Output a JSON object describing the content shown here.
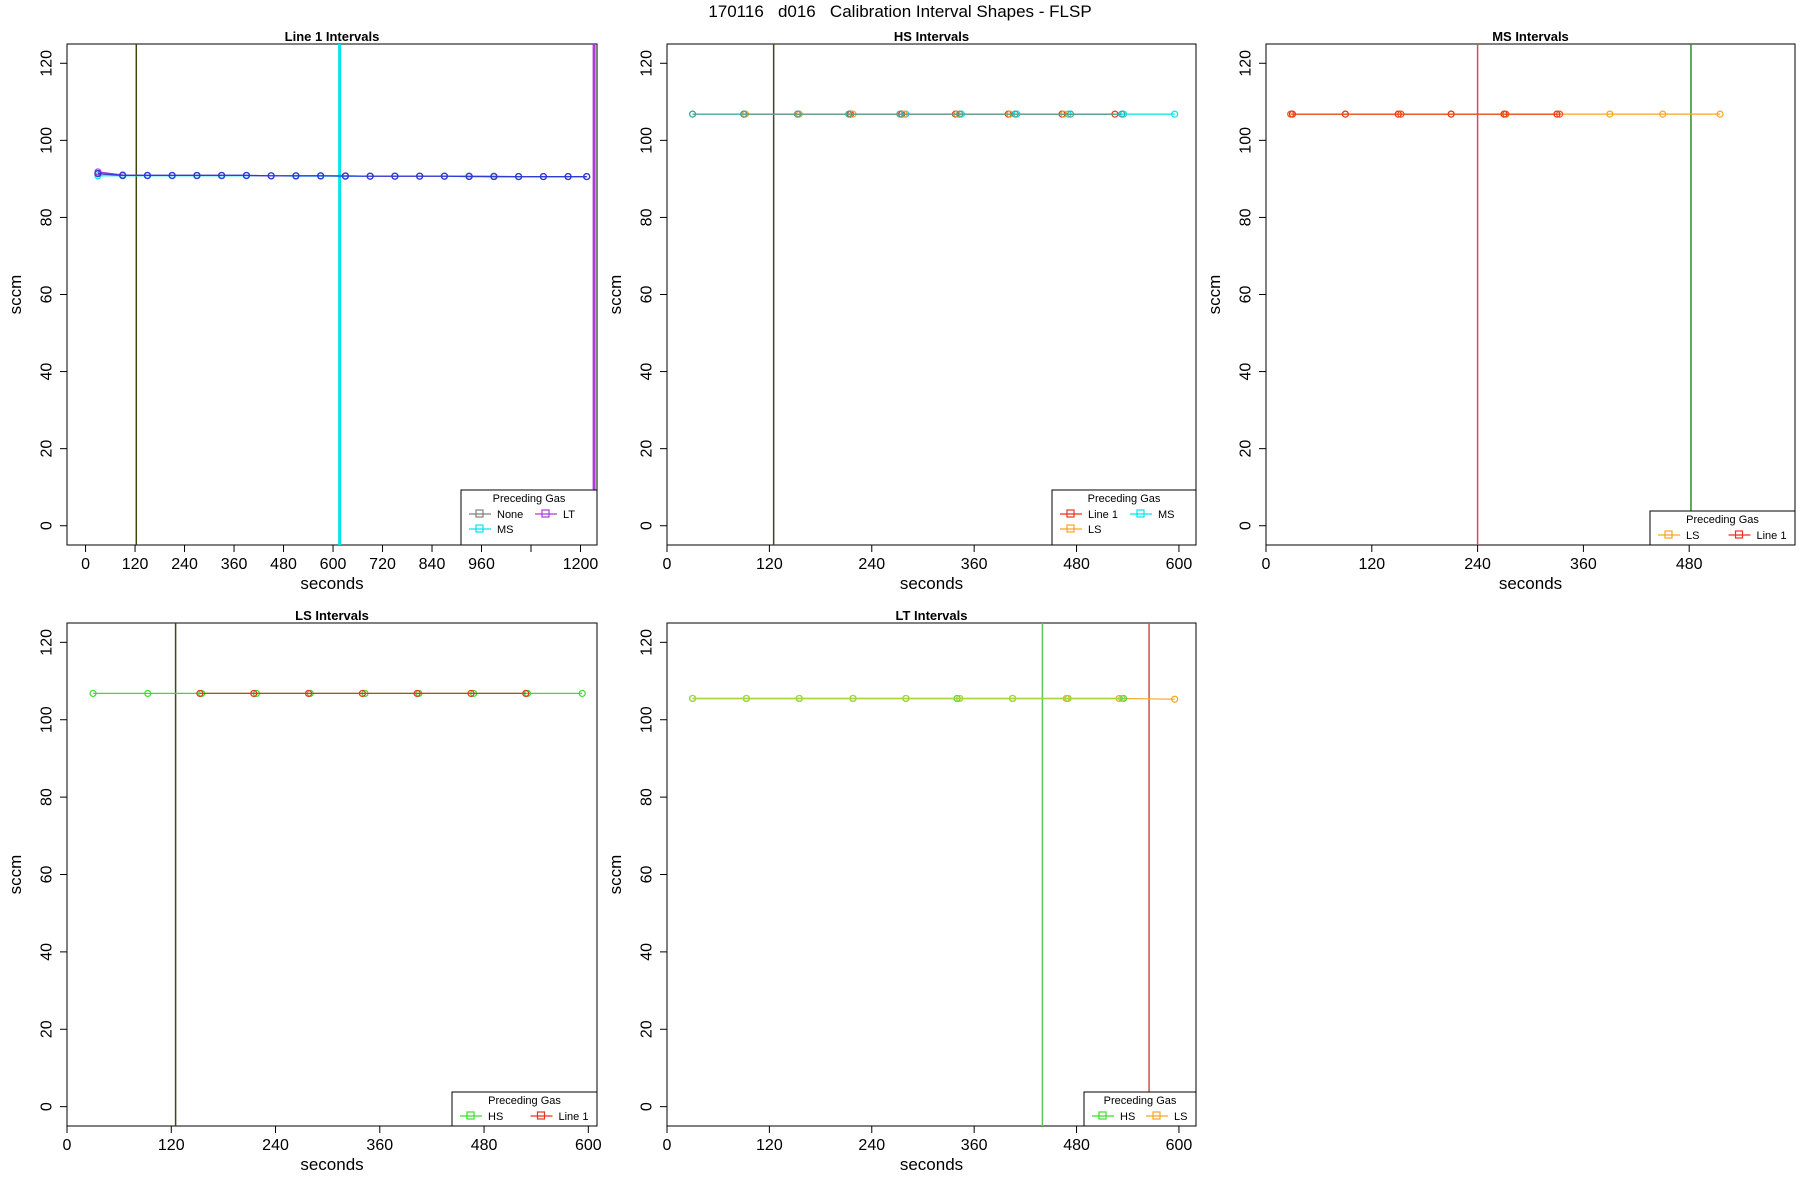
{
  "page_title": "170116   d016   Calibration Interval Shapes - FLSP",
  "colors": {
    "None": "#808080",
    "MS": "#00e5ee",
    "LT": "#b03ad8",
    "Line 1": "#e8331f",
    "LS": "#f5a623",
    "HS": "#3adf2a",
    "dark_olive": "#3d4a0f",
    "forest_green": "#2e8b2e",
    "light_green": "#5fc35f",
    "brick_red": "#c8544a",
    "blue_line": "#2b3cd8",
    "teal_line": "#4aa39a",
    "orange_red_line": "#e8521a",
    "yellow_green_line": "#a6d83a"
  },
  "chart_data": [
    {
      "type": "line",
      "title": "Line 1 Intervals",
      "xlabel": "seconds",
      "ylabel": "sccm",
      "xlim": [
        -45,
        1240
      ],
      "ylim": [
        -5,
        125
      ],
      "xticks": [
        0,
        120,
        240,
        360,
        480,
        600,
        720,
        840,
        960,
        1080,
        1200
      ],
      "xticklabels": [
        "0",
        "120",
        "240",
        "360",
        "480",
        "600",
        "720",
        "840",
        "960",
        "",
        "1200"
      ],
      "yticks": [
        0,
        20,
        40,
        60,
        80,
        100,
        120
      ],
      "legend": {
        "title": "Preceding Gas",
        "position": "bottom-right",
        "entries": [
          "None",
          "LT",
          "MS"
        ]
      },
      "vlines": [
        {
          "x": 123,
          "color": "#3d4a0f",
          "width": 1.5
        },
        {
          "x": 616,
          "color": "#00e5ee",
          "width": 3
        },
        {
          "x": 1233,
          "color": "#b03ad8",
          "width": 3
        }
      ],
      "series": [
        {
          "name": "MS",
          "color": "#00e5ee",
          "x": [
            30,
            90,
            150,
            210,
            270,
            330,
            390,
            450,
            510,
            570,
            630,
            690,
            750,
            810,
            870,
            930,
            990,
            1050,
            1110,
            1170,
            1215
          ],
          "y": [
            90.8,
            90.8,
            90.8,
            90.8,
            90.8,
            90.8,
            90.8,
            90.8,
            90.7,
            90.7,
            90.7,
            90.7,
            90.7,
            90.7,
            90.7,
            90.7,
            90.6,
            90.6,
            90.6,
            90.6,
            90.6
          ]
        },
        {
          "name": "None",
          "color": "#808080",
          "x": [
            30,
            90,
            150,
            210,
            270,
            330,
            390,
            450,
            510,
            570,
            630,
            690,
            750,
            810,
            870,
            930,
            990,
            1050,
            1110,
            1170,
            1215
          ],
          "y": [
            91.3,
            90.9,
            90.9,
            90.9,
            90.9,
            90.9,
            90.9,
            90.8,
            90.8,
            90.8,
            90.8,
            90.7,
            90.7,
            90.7,
            90.7,
            90.7,
            90.7,
            90.6,
            90.6,
            90.6,
            90.6
          ]
        },
        {
          "name": "LT",
          "color": "#b03ad8",
          "x": [
            30,
            90,
            150,
            210,
            270,
            330,
            390,
            450,
            510,
            570,
            630,
            690,
            750,
            810,
            870,
            930,
            990,
            1050,
            1110,
            1170,
            1215
          ],
          "y": [
            91.8,
            91.0,
            90.9,
            90.9,
            90.9,
            90.9,
            90.9,
            90.8,
            90.8,
            90.8,
            90.8,
            90.7,
            90.7,
            90.7,
            90.7,
            90.7,
            90.6,
            90.6,
            90.6,
            90.6,
            90.6
          ]
        },
        {
          "name": "",
          "color": "#2b3cd8",
          "x": [
            30,
            90,
            150,
            210,
            270,
            330,
            390,
            450,
            510,
            570,
            630,
            690,
            750,
            810,
            870,
            930,
            990,
            1050,
            1110,
            1170,
            1215
          ],
          "y": [
            91.4,
            90.9,
            90.9,
            90.9,
            90.9,
            90.9,
            90.9,
            90.8,
            90.8,
            90.8,
            90.7,
            90.7,
            90.7,
            90.7,
            90.7,
            90.6,
            90.6,
            90.6,
            90.6,
            90.6,
            90.6
          ]
        }
      ]
    },
    {
      "type": "line",
      "title": "HS Intervals",
      "xlabel": "seconds",
      "ylabel": "sccm",
      "xlim": [
        0,
        620
      ],
      "ylim": [
        -5,
        125
      ],
      "xticks": [
        0,
        120,
        240,
        360,
        480,
        600
      ],
      "xticklabels": [
        "0",
        "120",
        "240",
        "360",
        "480",
        "600"
      ],
      "yticks": [
        0,
        20,
        40,
        60,
        80,
        100,
        120
      ],
      "legend": {
        "title": "Preceding Gas",
        "position": "bottom-right",
        "entries": [
          "Line 1",
          "MS",
          "LS"
        ]
      },
      "vlines": [
        {
          "x": 125,
          "color": "#3d4a0f",
          "width": 1.5
        }
      ],
      "series": [
        {
          "name": "MS",
          "color": "#00e5ee",
          "x": [
            30,
            90,
            155,
            215,
            280,
            345,
            410,
            470,
            535,
            595
          ],
          "y": [
            106.8,
            106.8,
            106.8,
            106.8,
            106.8,
            106.8,
            106.8,
            106.8,
            106.8,
            106.8
          ]
        },
        {
          "name": "Line 1",
          "color": "#e8331f",
          "x": [
            90,
            153,
            215,
            275,
            338,
            400,
            463,
            525
          ],
          "y": [
            106.8,
            106.8,
            106.8,
            106.8,
            106.8,
            106.8,
            106.8,
            106.8
          ]
        },
        {
          "name": "LS",
          "color": "#f5a623",
          "x": [
            92,
            155,
            218,
            278,
            340,
            402,
            465
          ],
          "y": [
            106.8,
            106.8,
            106.8,
            106.8,
            106.8,
            106.8,
            106.8
          ]
        },
        {
          "name": "",
          "color": "#4aa39a",
          "x": [
            30,
            90,
            153,
            213,
            273,
            343,
            408,
            473,
            533
          ],
          "y": [
            106.8,
            106.8,
            106.8,
            106.8,
            106.8,
            106.8,
            106.8,
            106.8,
            106.8
          ]
        }
      ]
    },
    {
      "type": "line",
      "title": "MS Intervals",
      "xlabel": "seconds",
      "ylabel": "sccm",
      "xlim": [
        0,
        600
      ],
      "ylim": [
        -5,
        125
      ],
      "xticks": [
        0,
        120,
        240,
        360,
        480
      ],
      "xticklabels": [
        "0",
        "120",
        "240",
        "360",
        "480"
      ],
      "yticks": [
        0,
        20,
        40,
        60,
        80,
        100,
        120
      ],
      "legend": {
        "title": "Preceding Gas",
        "position": "bottom-right",
        "entries": [
          "LS",
          "Line 1"
        ]
      },
      "vlines": [
        {
          "x": 240,
          "color": "#c8544a",
          "width": 1.5
        },
        {
          "x": 482,
          "color": "#2e8b2e",
          "width": 1.5
        }
      ],
      "series": [
        {
          "name": "LS",
          "color": "#f5a623",
          "x": [
            30,
            90,
            150,
            210,
            270,
            330,
            390,
            450,
            515
          ],
          "y": [
            106.8,
            106.8,
            106.8,
            106.8,
            106.8,
            106.8,
            106.8,
            106.8,
            106.8
          ]
        },
        {
          "name": "Line 1",
          "color": "#e8331f",
          "x": [
            30,
            90,
            150,
            210,
            270,
            330
          ],
          "y": [
            106.8,
            106.8,
            106.8,
            106.8,
            106.8,
            106.8
          ]
        },
        {
          "name": "",
          "color": "#e8521a",
          "x": [
            28,
            153,
            272,
            333
          ],
          "y": [
            106.8,
            106.8,
            106.8,
            106.8
          ]
        }
      ]
    },
    {
      "type": "line",
      "title": "LS Intervals",
      "xlabel": "seconds",
      "ylabel": "sccm",
      "xlim": [
        0,
        610
      ],
      "ylim": [
        -5,
        125
      ],
      "xticks": [
        0,
        120,
        240,
        360,
        480,
        600
      ],
      "xticklabels": [
        "0",
        "120",
        "240",
        "360",
        "480",
        "600"
      ],
      "yticks": [
        0,
        20,
        40,
        60,
        80,
        100,
        120
      ],
      "legend": {
        "title": "Preceding Gas",
        "position": "bottom-right",
        "entries": [
          "HS",
          "Line 1"
        ]
      },
      "vlines": [
        {
          "x": 125,
          "color": "#3d4a0f",
          "width": 1.5
        }
      ],
      "series": [
        {
          "name": "HS",
          "color": "#3adf2a",
          "x": [
            30,
            93,
            155,
            218,
            280,
            343,
            405,
            468,
            530,
            593
          ],
          "y": [
            106.8,
            106.8,
            106.8,
            106.8,
            106.8,
            106.8,
            106.8,
            106.8,
            106.8,
            106.8
          ]
        },
        {
          "name": "Line 1",
          "color": "#e8331f",
          "x": [
            153,
            215,
            278,
            340,
            403,
            465,
            528
          ],
          "y": [
            106.8,
            106.8,
            106.8,
            106.8,
            106.8,
            106.8,
            106.8
          ]
        }
      ]
    },
    {
      "type": "line",
      "title": "LT Intervals",
      "xlabel": "seconds",
      "ylabel": "sccm",
      "xlim": [
        0,
        620
      ],
      "ylim": [
        -5,
        125
      ],
      "xticks": [
        0,
        120,
        240,
        360,
        480,
        600
      ],
      "xticklabels": [
        "0",
        "120",
        "240",
        "360",
        "480",
        "600"
      ],
      "yticks": [
        0,
        20,
        40,
        60,
        80,
        100,
        120
      ],
      "legend": {
        "title": "Preceding Gas",
        "position": "bottom-right",
        "entries": [
          "HS",
          "LS"
        ]
      },
      "vlines": [
        {
          "x": 440,
          "color": "#5fc35f",
          "width": 1.5
        },
        {
          "x": 565,
          "color": "#c8544a",
          "width": 1.5
        }
      ],
      "series": [
        {
          "name": "LS",
          "color": "#f5a623",
          "x": [
            30,
            93,
            155,
            218,
            280,
            343,
            405,
            468,
            530,
            595
          ],
          "y": [
            105.5,
            105.5,
            105.5,
            105.5,
            105.5,
            105.5,
            105.5,
            105.5,
            105.5,
            105.3
          ]
        },
        {
          "name": "HS",
          "color": "#3adf2a",
          "x": [
            30,
            93,
            155,
            218,
            280,
            340,
            405,
            470,
            535
          ],
          "y": [
            105.5,
            105.5,
            105.5,
            105.5,
            105.5,
            105.5,
            105.5,
            105.5,
            105.5
          ]
        },
        {
          "name": "",
          "color": "#a6d83a",
          "x": [
            30,
            93,
            155,
            218,
            280,
            343,
            405,
            470,
            533
          ],
          "y": [
            105.5,
            105.5,
            105.5,
            105.5,
            105.5,
            105.5,
            105.5,
            105.5,
            105.5
          ]
        }
      ]
    }
  ]
}
